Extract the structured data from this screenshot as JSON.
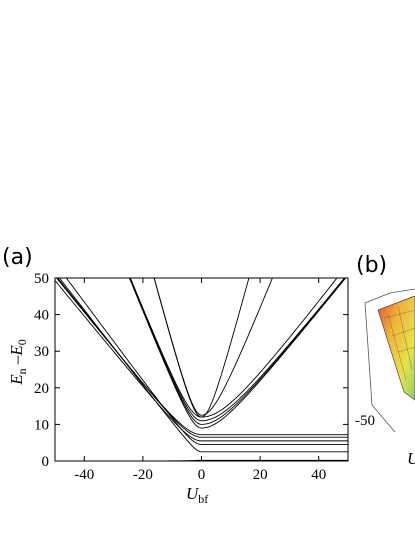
{
  "panels": {
    "a": "(a)",
    "b": "(b)"
  },
  "chart_data": {
    "type": "line",
    "xlim": [
      -50,
      50
    ],
    "ylim": [
      0,
      50
    ],
    "xticks": [
      "-40",
      "-20",
      "0",
      "20",
      "40"
    ],
    "yticks": [
      "0",
      "10",
      "20",
      "30",
      "40",
      "50"
    ],
    "xlabel": {
      "main": "U",
      "sub": "bf"
    },
    "ylabel": {
      "a": "E",
      "a_sub": "n",
      "sep": " –",
      "b": "E",
      "b_sub": "0"
    },
    "grid": false,
    "series": [
      {
        "vmin": 0.0,
        "kL": 0.0,
        "kR": 0.0,
        "aL": 0.0,
        "aR": 0.0
      },
      {
        "vmin": 2.5,
        "kL": 1.03,
        "kR": 0.0,
        "aL": 0.0,
        "aR": 2.5
      },
      {
        "vmin": 4.5,
        "kL": 1.08,
        "kR": 0.0,
        "aL": 0.0,
        "aR": 4.5
      },
      {
        "vmin": 5.5,
        "kL": 0.98,
        "kR": 0.0,
        "aL": 0.0,
        "aR": 5.5
      },
      {
        "vmin": 6.5,
        "kL": 1.01,
        "kR": 0.0,
        "aL": 0.0,
        "aR": 6.5
      },
      {
        "vmin": 7.2,
        "kL": 1.0,
        "kR": 0.0,
        "aL": 0.0,
        "aR": 7.2
      },
      {
        "vmin": 9.0,
        "kL": 2.0,
        "kR": 1.0,
        "aL": 0.0,
        "aR": 0.0
      },
      {
        "vmin": 10.0,
        "kL": 2.0,
        "kR": 1.0,
        "aL": 0.0,
        "aR": 0.0
      },
      {
        "vmin": 11.0,
        "kL": 2.0,
        "kR": 1.0,
        "aL": 0.0,
        "aR": 0.0
      },
      {
        "vmin": 12.0,
        "kL": 3.0,
        "kR": 1.05,
        "aL": 0.0,
        "aR": 0.0
      },
      {
        "vmin": 12.5,
        "kL": 3.0,
        "kR": 2.0,
        "aL": 0.0,
        "aR": 0.0
      },
      {
        "vmin": 12.0,
        "kL": 2.0,
        "kR": 3.0,
        "aL": 0.0,
        "aR": 0.0
      }
    ]
  },
  "inset_b": {
    "tick": "-50",
    "axis_letter": "U"
  }
}
